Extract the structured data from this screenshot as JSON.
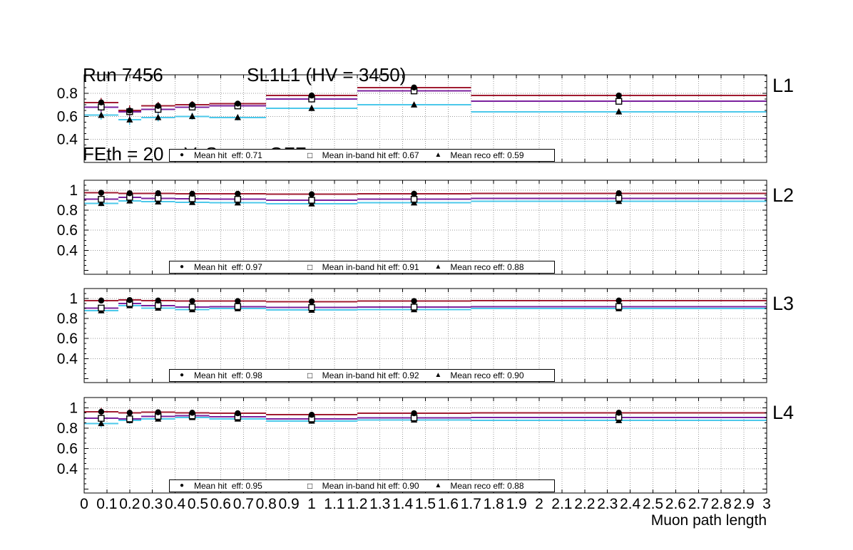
{
  "header": {
    "run": "Run 7456",
    "chamber": "SL1L1 (HV = 3450)",
    "settings": "FEth = 20 mV, Source OFF"
  },
  "chart_data": {
    "type": "line",
    "title": "Run 7456 SL1L1 (HV = 3450) FEth = 20 mV, Source OFF",
    "x_label": "Muon path length",
    "x_range": [
      0,
      3
    ],
    "x_tick_step": 0.1,
    "x_tick_labels": [
      "0",
      "0.1",
      "0.2",
      "0.3",
      "0.4",
      "0.5",
      "0.6",
      "0.7",
      "0.8",
      "0.9",
      "1",
      "1.1",
      "1.2",
      "1.3",
      "1.4",
      "1.5",
      "1.6",
      "1.7",
      "1.8",
      "1.9",
      "2",
      "2.1",
      "2.2",
      "2.3",
      "2.4",
      "2.5",
      "2.6",
      "2.7",
      "2.8",
      "2.9",
      "3"
    ],
    "bin_edges": [
      0,
      0.15,
      0.25,
      0.4,
      0.55,
      0.8,
      1.2,
      1.7,
      3.0
    ],
    "series_colors": {
      "hit": "#a01b30",
      "inband": "#7b219e",
      "reco": "#4cc8ea"
    },
    "series_names": {
      "hit": "hit efficiency",
      "inband": "in-band hit efficiency",
      "reco": "reco efficiency"
    },
    "marker_glyphs": {
      "circle": "●",
      "square": "□",
      "triangle": "▲"
    },
    "grid": "dotted",
    "panels": [
      {
        "label": "L1",
        "ylim": [
          0.2,
          0.96
        ],
        "yticks": [
          0.4,
          0.6,
          0.8
        ],
        "ytick_labels": [
          "0.4",
          "0.6",
          "0.8"
        ],
        "series": {
          "hit": [
            0.72,
            0.65,
            0.69,
            0.7,
            0.71,
            0.78,
            0.85,
            0.78
          ],
          "inband": [
            0.68,
            0.64,
            0.66,
            0.68,
            0.69,
            0.75,
            0.82,
            0.73
          ],
          "reco": [
            0.61,
            0.57,
            0.59,
            0.6,
            0.59,
            0.67,
            0.7,
            0.64
          ]
        },
        "bin_errors": [
          0.04,
          0.045,
          0.035,
          0.03,
          0.025,
          0.02,
          0.015,
          0.02
        ],
        "legend": [
          {
            "marker": "filled-circle",
            "label": "Mean hit  eff: 0.71"
          },
          {
            "marker": "open-square",
            "label": "Mean in-band hit eff: 0.67"
          },
          {
            "marker": "filled-triangle",
            "label": "Mean reco eff: 0.59"
          }
        ]
      },
      {
        "label": "L2",
        "ylim": [
          0.16,
          1.1
        ],
        "yticks": [
          0.4,
          0.6,
          0.8,
          1
        ],
        "ytick_labels": [
          "0.4",
          "0.6",
          "0.8",
          "1"
        ],
        "series": {
          "hit": [
            0.975,
            0.97,
            0.97,
            0.965,
            0.965,
            0.96,
            0.965,
            0.97
          ],
          "inband": [
            0.91,
            0.93,
            0.92,
            0.915,
            0.91,
            0.9,
            0.91,
            0.92
          ],
          "reco": [
            0.87,
            0.895,
            0.885,
            0.88,
            0.875,
            0.865,
            0.875,
            0.89
          ]
        },
        "bin_errors": [
          0.03,
          0.028,
          0.022,
          0.018,
          0.015,
          0.012,
          0.01,
          0.012
        ],
        "legend": [
          {
            "marker": "filled-circle",
            "label": "Mean hit  eff: 0.97"
          },
          {
            "marker": "open-square",
            "label": "Mean in-band hit eff: 0.91"
          },
          {
            "marker": "filled-triangle",
            "label": "Mean reco eff: 0.88"
          }
        ]
      },
      {
        "label": "L3",
        "ylim": [
          0.16,
          1.1
        ],
        "yticks": [
          0.4,
          0.6,
          0.8,
          1
        ],
        "ytick_labels": [
          "0.4",
          "0.6",
          "0.8",
          "1"
        ],
        "series": {
          "hit": [
            0.98,
            0.985,
            0.98,
            0.975,
            0.975,
            0.97,
            0.975,
            0.98
          ],
          "inband": [
            0.905,
            0.95,
            0.93,
            0.915,
            0.92,
            0.91,
            0.915,
            0.92
          ],
          "reco": [
            0.88,
            0.93,
            0.905,
            0.89,
            0.9,
            0.885,
            0.89,
            0.9
          ]
        },
        "bin_errors": [
          0.03,
          0.025,
          0.02,
          0.018,
          0.015,
          0.012,
          0.01,
          0.012
        ],
        "legend": [
          {
            "marker": "filled-circle",
            "label": "Mean hit  eff: 0.98"
          },
          {
            "marker": "open-square",
            "label": "Mean in-band hit eff: 0.92"
          },
          {
            "marker": "filled-triangle",
            "label": "Mean reco eff: 0.90"
          }
        ]
      },
      {
        "label": "L4",
        "ylim": [
          0.16,
          1.1
        ],
        "yticks": [
          0.4,
          0.6,
          0.8,
          1
        ],
        "ytick_labels": [
          "0.4",
          "0.6",
          "0.8",
          "1"
        ],
        "series": {
          "hit": [
            0.96,
            0.95,
            0.955,
            0.95,
            0.945,
            0.93,
            0.945,
            0.95
          ],
          "inband": [
            0.895,
            0.89,
            0.915,
            0.92,
            0.91,
            0.89,
            0.9,
            0.905
          ],
          "reco": [
            0.845,
            0.875,
            0.89,
            0.905,
            0.89,
            0.87,
            0.88,
            0.875
          ]
        },
        "bin_errors": [
          0.04,
          0.035,
          0.025,
          0.02,
          0.018,
          0.015,
          0.012,
          0.015
        ],
        "legend": [
          {
            "marker": "filled-circle",
            "label": "Mean hit  eff: 0.95"
          },
          {
            "marker": "open-square",
            "label": "Mean in-band hit eff: 0.90"
          },
          {
            "marker": "filled-triangle",
            "label": "Mean reco eff: 0.88"
          }
        ]
      }
    ]
  }
}
